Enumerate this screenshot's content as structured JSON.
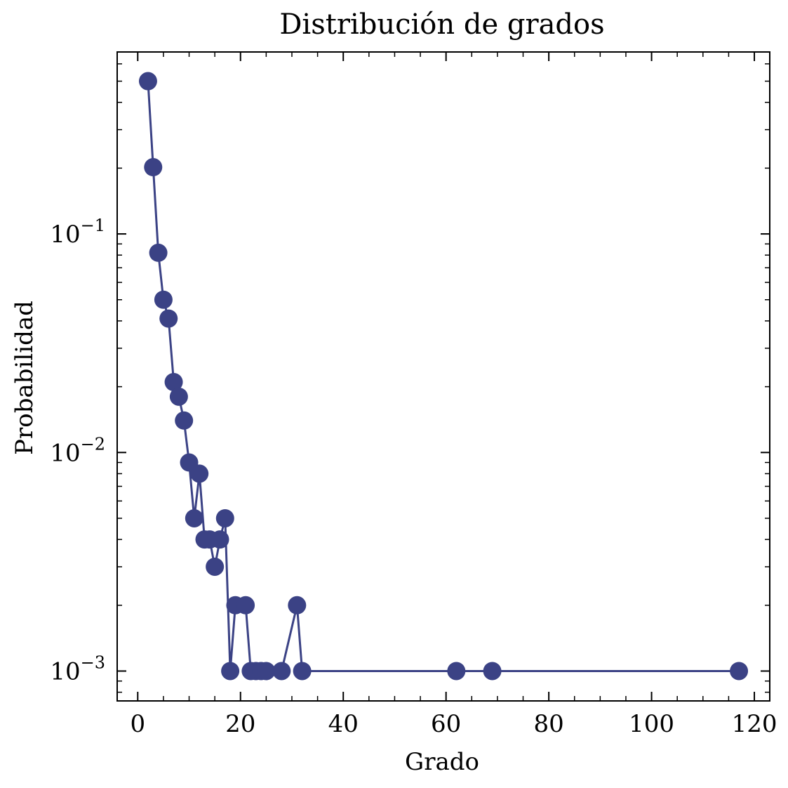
{
  "chart_data": {
    "type": "line",
    "title": "Distribución de grados",
    "xlabel": "Grado",
    "ylabel": "Probabilidad",
    "xlim": [
      -4,
      123
    ],
    "ylim": [
      0.00073,
      0.68
    ],
    "yscale": "log",
    "grid": false,
    "x_ticks": [
      0,
      20,
      40,
      60,
      80,
      100,
      120
    ],
    "x_tick_labels": [
      "0",
      "20",
      "40",
      "60",
      "80",
      "100",
      "120"
    ],
    "y_ticks": [
      0.001,
      0.01,
      0.1
    ],
    "y_tick_labels": [
      {
        "base": "10",
        "exp": "−3"
      },
      {
        "base": "10",
        "exp": "−2"
      },
      {
        "base": "10",
        "exp": "−1"
      }
    ],
    "series": [
      {
        "color": "#3b4285",
        "marker": "circle",
        "x": [
          2,
          3,
          4,
          5,
          6,
          7,
          8,
          9,
          10,
          11,
          12,
          13,
          14,
          15,
          16,
          17,
          18,
          19,
          21,
          22,
          23,
          24,
          25,
          28,
          31,
          32,
          62,
          69,
          117
        ],
        "y": [
          0.5,
          0.202,
          0.082,
          0.05,
          0.041,
          0.021,
          0.018,
          0.014,
          0.009,
          0.005,
          0.008,
          0.004,
          0.004,
          0.003,
          0.004,
          0.005,
          0.001,
          0.002,
          0.002,
          0.001,
          0.001,
          0.001,
          0.001,
          0.001,
          0.002,
          0.001,
          0.001,
          0.001,
          0.001
        ]
      }
    ]
  }
}
